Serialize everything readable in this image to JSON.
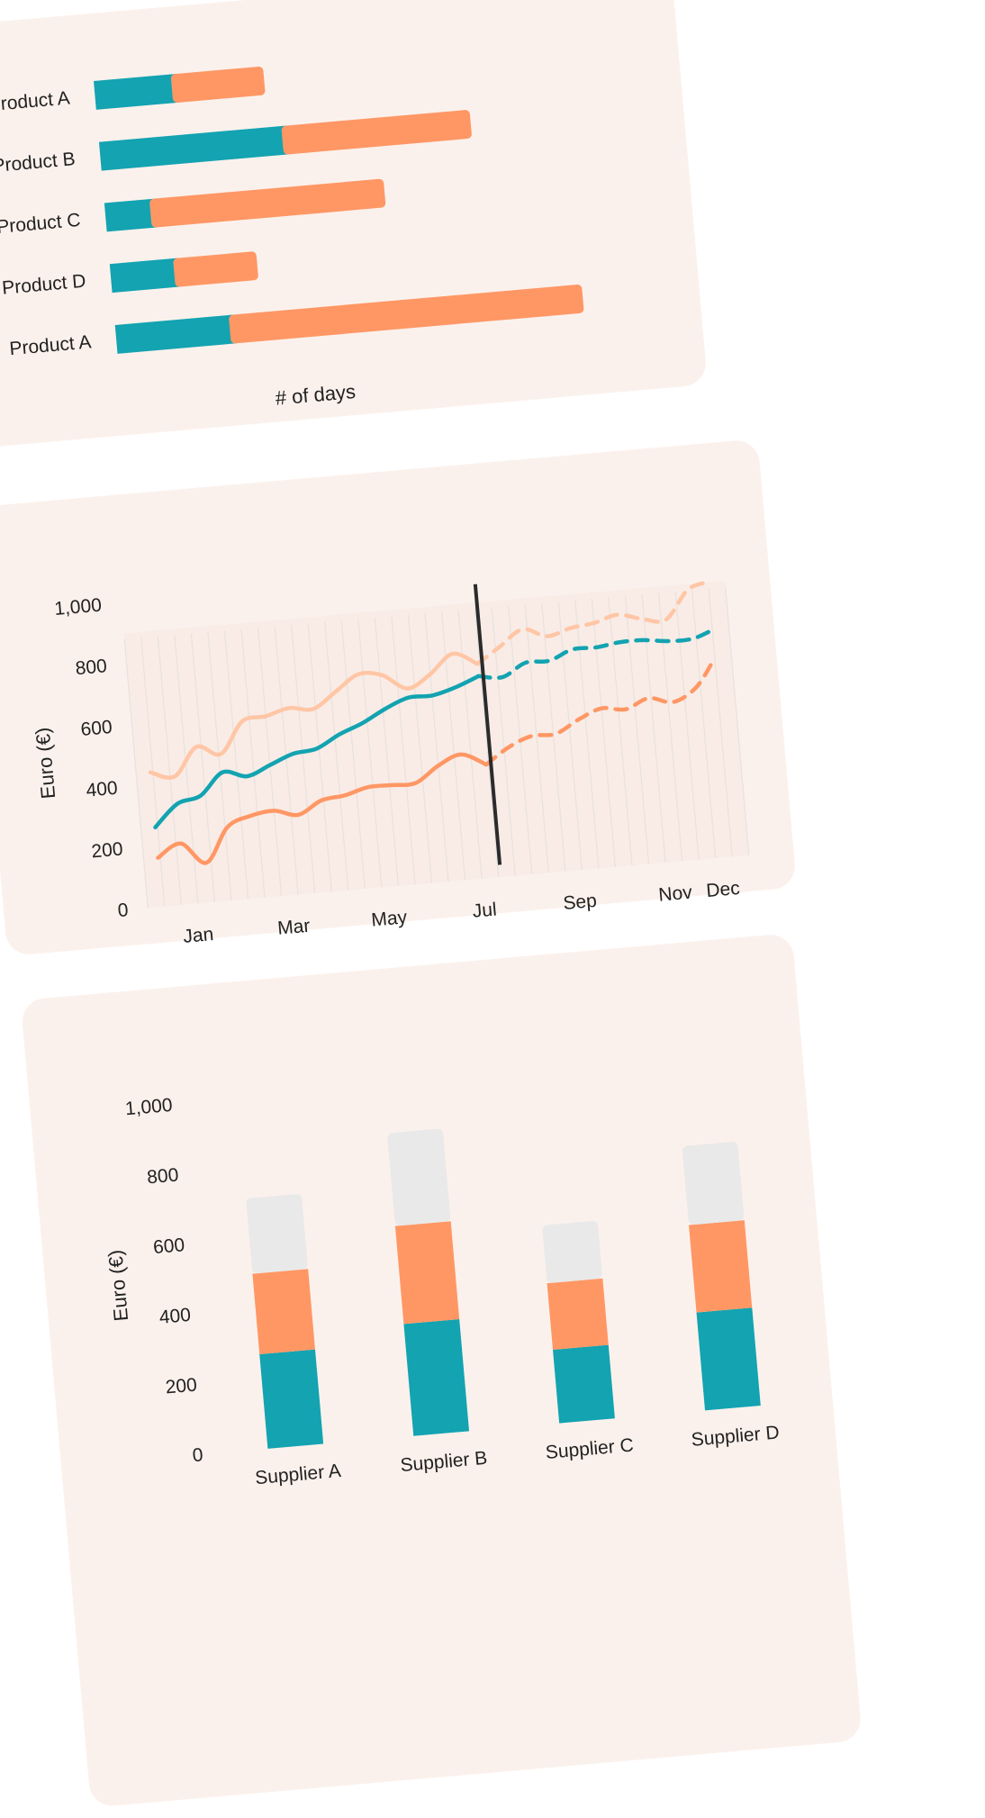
{
  "colors": {
    "card_bg": "#fbf1ec",
    "teal": "#13a3b1",
    "orange": "#ff9765",
    "light_orange": "#ffc6a6",
    "grey": "#e9e9e9",
    "ink": "#2b2b2b"
  },
  "chart_data": [
    {
      "type": "bar",
      "orientation": "horizontal",
      "stacked": true,
      "categories": [
        "Product A",
        "Product B",
        "Product C",
        "Product D",
        "Product A"
      ],
      "series": [
        {
          "name": "teal",
          "color": "#13a3b1",
          "values": [
            18,
            41,
            11,
            15,
            26
          ]
        },
        {
          "name": "orange",
          "color": "#ff9765",
          "values": [
            19,
            40,
            50,
            17,
            76
          ]
        }
      ],
      "xlabel": "# of days",
      "xlim": [
        0,
        110
      ]
    },
    {
      "type": "line",
      "ylabel": "Euro (€)",
      "ylim": [
        0,
        1000
      ],
      "yticks": [
        "0",
        "200",
        "400",
        "600",
        "800",
        "1,000"
      ],
      "x_tick_labels": [
        "Jan",
        "Mar",
        "May",
        "Jul",
        "Sep",
        "Nov",
        "Dec"
      ],
      "x_tick_positions": [
        1,
        3,
        5,
        7,
        9,
        11,
        12
      ],
      "forecast_start": 7.4,
      "series": [
        {
          "name": "upper",
          "color": "#ffc6a6",
          "x": [
            0.3,
            0.8,
            1.3,
            1.8,
            2.3,
            2.8,
            3.3,
            3.8,
            4.3,
            4.8,
            5.3,
            5.8,
            6.3,
            6.8,
            7.3,
            7.8,
            8.3,
            8.8,
            9.3,
            9.8,
            10.3,
            10.8,
            11.3,
            11.8,
            12.2
          ],
          "y": [
            440,
            420,
            510,
            480,
            580,
            590,
            610,
            600,
            650,
            700,
            690,
            640,
            680,
            740,
            700,
            750,
            800,
            770,
            790,
            800,
            820,
            800,
            790,
            880,
            900
          ]
        },
        {
          "name": "middle",
          "color": "#13a3b1",
          "x": [
            0.3,
            0.8,
            1.3,
            1.8,
            2.3,
            2.8,
            3.3,
            3.8,
            4.3,
            4.8,
            5.3,
            5.8,
            6.3,
            6.8,
            7.3,
            7.8,
            8.3,
            8.8,
            9.3,
            9.8,
            10.3,
            10.8,
            11.3,
            11.8,
            12.2
          ],
          "y": [
            260,
            330,
            350,
            420,
            400,
            430,
            460,
            470,
            510,
            540,
            580,
            610,
            610,
            630,
            660,
            650,
            690,
            690,
            720,
            720,
            730,
            730,
            720,
            720,
            740
          ]
        },
        {
          "name": "lower",
          "color": "#ff9765",
          "x": [
            0.3,
            0.8,
            1.3,
            1.8,
            2.3,
            2.8,
            3.3,
            3.8,
            4.3,
            4.8,
            5.3,
            5.8,
            6.3,
            6.8,
            7.3,
            7.8,
            8.3,
            8.8,
            9.3,
            9.8,
            10.3,
            10.8,
            11.3,
            11.8,
            12.2
          ],
          "y": [
            160,
            200,
            130,
            240,
            270,
            280,
            260,
            300,
            310,
            330,
            330,
            330,
            380,
            410,
            370,
            420,
            450,
            450,
            490,
            520,
            510,
            540,
            520,
            560,
            640
          ]
        }
      ]
    },
    {
      "type": "bar",
      "stacked": true,
      "ylabel": "Euro (€)",
      "ylim": [
        0,
        1000
      ],
      "yticks": [
        "0",
        "200",
        "400",
        "600",
        "800",
        "1,000"
      ],
      "categories": [
        "Supplier A",
        "Supplier B",
        "Supplier C",
        "Supplier D"
      ],
      "series": [
        {
          "name": "teal",
          "color": "#13a3b1",
          "values": [
            270,
            320,
            210,
            280
          ]
        },
        {
          "name": "orange",
          "color": "#ff9765",
          "values": [
            230,
            280,
            190,
            250
          ]
        },
        {
          "name": "grey",
          "color": "#e9e9e9",
          "values": [
            200,
            250,
            150,
            210
          ]
        }
      ]
    }
  ]
}
